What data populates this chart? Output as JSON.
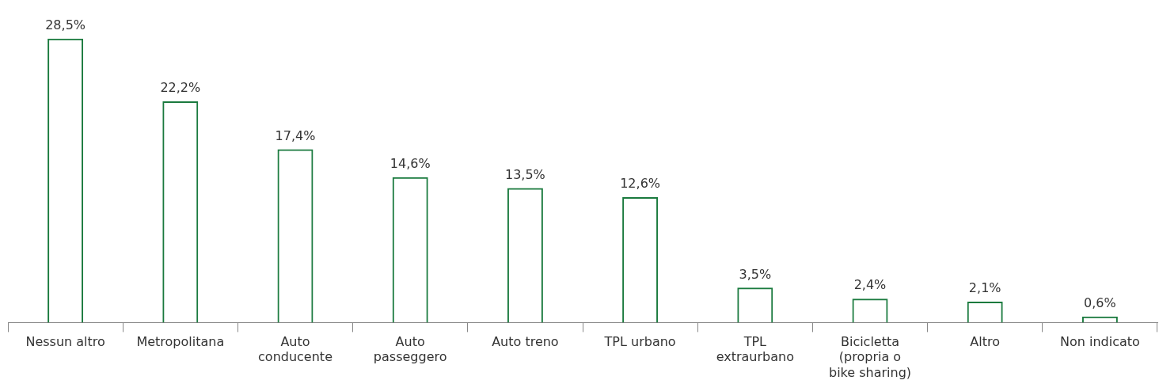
{
  "chart_data": {
    "type": "bar",
    "categories": [
      "Nessun altro",
      "Metropolitana",
      "Auto conducente",
      "Auto passeggero",
      "Auto treno",
      "TPL urbano",
      "TPL extraurbano",
      "Bicicletta (propria o bike sharing)",
      "Altro",
      "Non indicato"
    ],
    "values": [
      28.5,
      22.2,
      17.4,
      14.6,
      13.5,
      12.6,
      3.5,
      2.4,
      2.1,
      0.6
    ],
    "value_labels": [
      "28,5%",
      "22,2%",
      "17,4%",
      "14,6%",
      "13,5%",
      "12,6%",
      "3,5%",
      "2,4%",
      "2,1%",
      "0,6%"
    ],
    "color": "#1a7a3e",
    "grid": false,
    "legend": false
  }
}
